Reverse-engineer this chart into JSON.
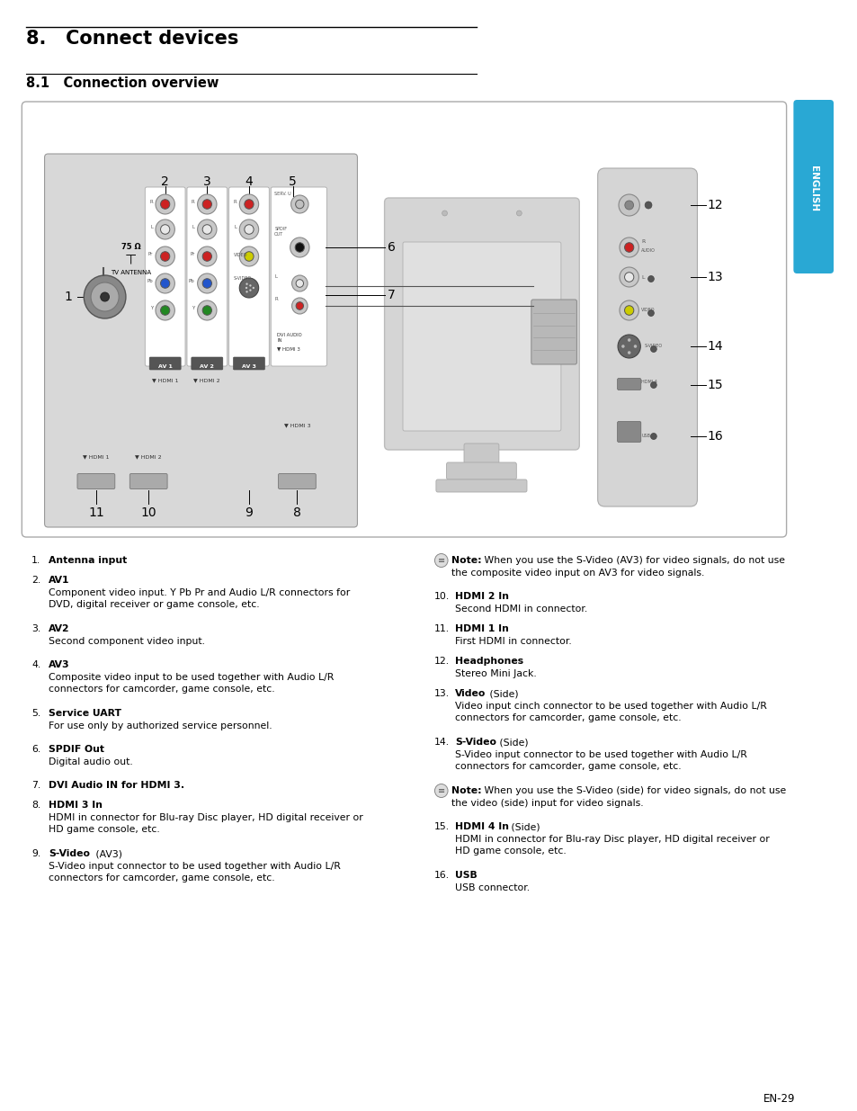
{
  "bg_color": "#ffffff",
  "tab_color": "#29a8d4",
  "tab_text": "ENGLISH",
  "title1": "8.   Connect devices",
  "title2": "8.1   Connection overview",
  "page_num": "EN-29",
  "left_items": [
    [
      "1.",
      "Antenna input",
      ""
    ],
    [
      "2.",
      "AV1",
      "Component video input. Y Pb Pr and Audio L/R connectors for\nDVD, digital receiver or game console, etc."
    ],
    [
      "3.",
      "AV2",
      "Second component video input."
    ],
    [
      "4.",
      "AV3",
      "Composite video input to be used together with Audio L/R\nconnectors for camcorder, game console, etc."
    ],
    [
      "5.",
      "Service UART",
      "For use only by authorized service personnel."
    ],
    [
      "6.",
      "SPDIF Out",
      "Digital audio out."
    ],
    [
      "7.",
      "DVI Audio IN for HDMI 3.",
      ""
    ],
    [
      "8.",
      "HDMI 3 In",
      "HDMI in connector for Blu-ray Disc player, HD digital receiver or\nHD game console, etc."
    ],
    [
      "9.",
      "S-Video",
      "(AV3)\nS-Video input connector to be used together with Audio L/R\nconnectors for camcorder, game console, etc."
    ]
  ],
  "right_items": [
    [
      "note",
      "",
      "Note:",
      " When you use the S-Video (AV3) for video signals, do not use\nthe composite video input on AV3 for video signals."
    ],
    [
      "10.",
      "HDMI 2 In",
      "Second HDMI in connector."
    ],
    [
      "11.",
      "HDMI 1 In",
      "First HDMI in connector."
    ],
    [
      "12.",
      "Headphones",
      "Stereo Mini Jack."
    ],
    [
      "13.",
      "Video",
      "(Side)\nVideo input cinch connector to be used together with Audio L/R\nconnectors for camcorder, game console, etc."
    ],
    [
      "14.",
      "S-Video",
      "(Side)\nS-Video input connector to be used together with Audio L/R\nconnectors for camcorder, game console, etc."
    ],
    [
      "note",
      "",
      "Note:",
      " When you use the S-Video (side) for video signals, do not use\nthe video (side) input for video signals."
    ],
    [
      "15.",
      "HDMI 4 In",
      "(Side)\nHDMI in connector for Blu-ray Disc player, HD digital receiver or\nHD game console, etc."
    ],
    [
      "16.",
      "USB",
      "USB connector."
    ]
  ]
}
